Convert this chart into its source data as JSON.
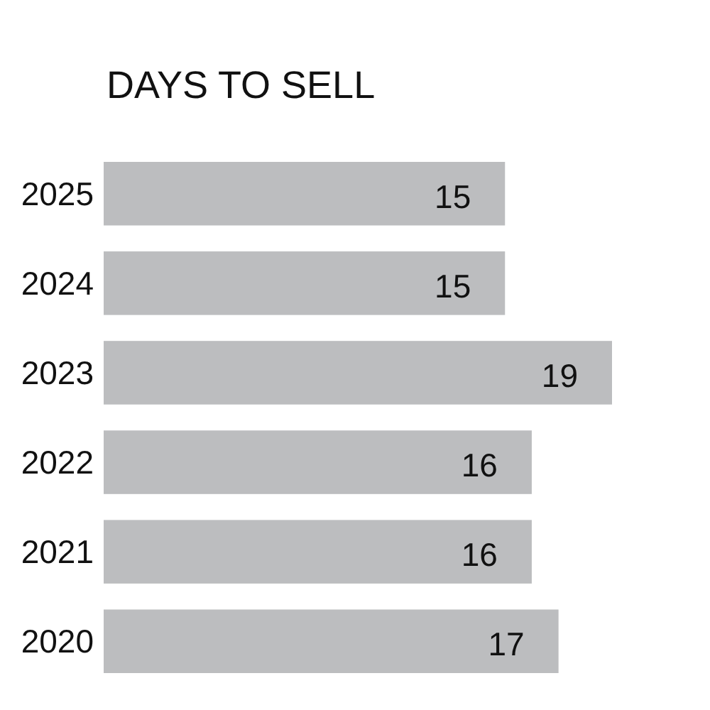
{
  "chart_data": {
    "type": "bar",
    "orientation": "horizontal",
    "title": "DAYS TO SELL",
    "categories": [
      "2025",
      "2024",
      "2023",
      "2022",
      "2021",
      "2020"
    ],
    "values": [
      15,
      15,
      19,
      16,
      16,
      17
    ],
    "color": "#bcbdbf",
    "data_labels": true
  }
}
